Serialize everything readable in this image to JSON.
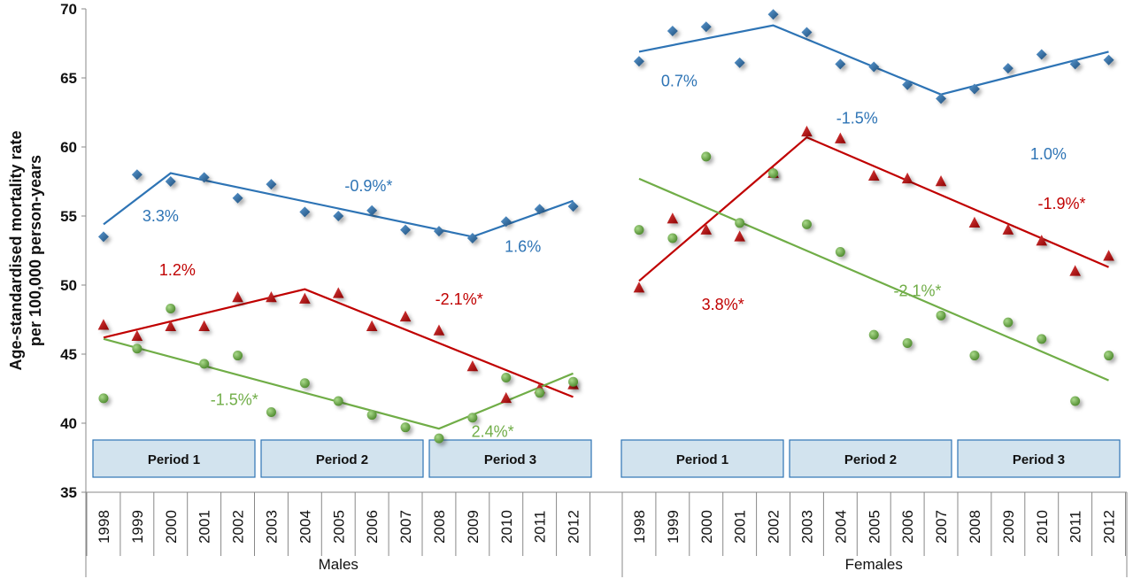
{
  "chart_data": {
    "type": "scatter",
    "ylabel": [
      "Age-standardised mortality rate",
      "per 100,000 person-years"
    ],
    "ylim": [
      35,
      70
    ],
    "yticks": [
      35,
      40,
      45,
      50,
      55,
      60,
      65,
      70
    ],
    "years": [
      "1998",
      "1999",
      "2000",
      "2001",
      "2002",
      "2003",
      "2004",
      "2005",
      "2006",
      "2007",
      "2008",
      "2009",
      "2010",
      "2011",
      "2012"
    ],
    "groups": [
      {
        "name": "Males",
        "periods": [
          "Period 1",
          "Period 2",
          "Period 3"
        ],
        "series": [
          {
            "marker": "diamond",
            "color": "#2E74B5",
            "values": [
              53.5,
              58.0,
              57.5,
              57.8,
              56.3,
              57.3,
              55.3,
              55.0,
              55.4,
              54.0,
              53.9,
              53.4,
              54.6,
              55.5,
              55.7
            ],
            "trend": [
              [
                1998,
                54.4
              ],
              [
                2000,
                58.1
              ],
              [
                2009,
                53.5
              ],
              [
                2012,
                56.1
              ]
            ],
            "annotations": [
              {
                "text": "3.3%",
                "x": 1999.7,
                "y": 54.6
              },
              {
                "text": "-0.9%*",
                "x": 2005.9,
                "y": 56.8
              },
              {
                "text": "1.6%",
                "x": 2010.5,
                "y": 52.4
              }
            ]
          },
          {
            "marker": "triangle",
            "color": "#C00000",
            "values": [
              47.1,
              46.3,
              47.0,
              47.0,
              49.1,
              49.1,
              49.0,
              49.4,
              47.0,
              47.7,
              46.7,
              44.1,
              41.8,
              42.5,
              42.8
            ],
            "trend": [
              [
                1998,
                46.2
              ],
              [
                2004,
                49.7
              ],
              [
                2012,
                41.9
              ]
            ],
            "annotations": [
              {
                "text": "1.2%",
                "x": 2000.2,
                "y": 50.7
              },
              {
                "text": "-2.1%*",
                "x": 2008.6,
                "y": 48.6
              }
            ]
          },
          {
            "marker": "circle",
            "color": "#70AD47",
            "values": [
              41.8,
              45.4,
              48.3,
              44.3,
              44.9,
              40.8,
              42.9,
              41.6,
              40.6,
              39.7,
              38.9,
              40.4,
              43.3,
              42.2,
              43.0
            ],
            "trend": [
              [
                1998,
                46.1
              ],
              [
                2008,
                39.6
              ],
              [
                2012,
                43.6
              ]
            ],
            "annotations": [
              {
                "text": "-1.5%*",
                "x": 2001.9,
                "y": 41.3
              },
              {
                "text": "2.4%*",
                "x": 2009.6,
                "y": 39.0
              }
            ]
          }
        ]
      },
      {
        "name": "Females",
        "periods": [
          "Period 1",
          "Period 2",
          "Period 3"
        ],
        "series": [
          {
            "marker": "diamond",
            "color": "#2E74B5",
            "values": [
              66.2,
              68.4,
              68.7,
              66.1,
              69.6,
              68.3,
              66.0,
              65.8,
              64.5,
              63.5,
              64.2,
              65.7,
              66.7,
              66.0,
              66.3
            ],
            "trend": [
              [
                1998,
                66.9
              ],
              [
                2002,
                68.8
              ],
              [
                2007,
                63.8
              ],
              [
                2012,
                66.9
              ]
            ],
            "annotations": [
              {
                "text": "0.7%",
                "x": 1999.2,
                "y": 64.4
              },
              {
                "text": "-1.5%",
                "x": 2004.5,
                "y": 61.7
              },
              {
                "text": "1.0%",
                "x": 2010.2,
                "y": 59.1
              }
            ]
          },
          {
            "marker": "triangle",
            "color": "#C00000",
            "values": [
              49.8,
              54.8,
              54.0,
              53.5,
              58.1,
              61.1,
              60.6,
              57.9,
              57.7,
              57.5,
              54.5,
              54.0,
              53.2,
              51.0,
              52.1
            ],
            "trend": [
              [
                1998,
                50.3
              ],
              [
                2003,
                60.7
              ],
              [
                2012,
                51.3
              ]
            ],
            "annotations": [
              {
                "text": "3.8%*",
                "x": 2000.5,
                "y": 48.2
              },
              {
                "text": "-1.9%*",
                "x": 2010.6,
                "y": 55.5
              }
            ]
          },
          {
            "marker": "circle",
            "color": "#70AD47",
            "values": [
              54.0,
              53.4,
              59.3,
              54.5,
              58.1,
              54.4,
              52.4,
              46.4,
              45.8,
              47.8,
              44.9,
              47.3,
              46.1,
              41.6,
              44.9
            ],
            "trend": [
              [
                1998,
                57.7
              ],
              [
                2012,
                43.1
              ]
            ],
            "annotations": [
              {
                "text": "-2.1%*",
                "x": 2006.3,
                "y": 49.2
              }
            ]
          }
        ]
      }
    ]
  }
}
